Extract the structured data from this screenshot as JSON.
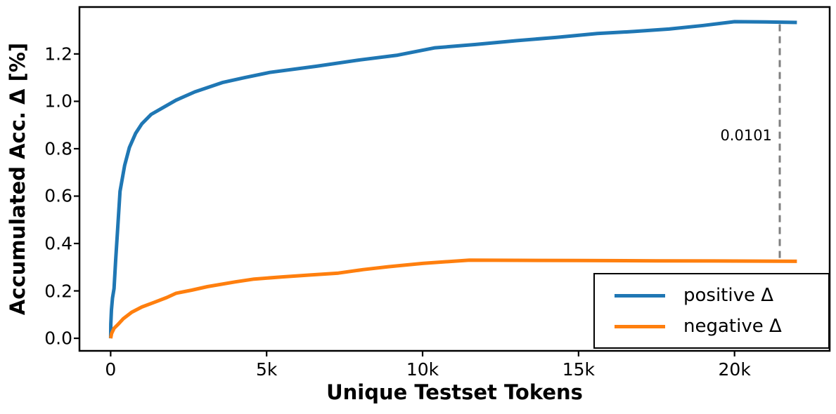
{
  "chart_data": {
    "type": "line",
    "title": "",
    "xlabel": "Unique Testset Tokens",
    "ylabel": "Accumulated Acc. Δ [%]",
    "grid": false,
    "legend_position": "lower right",
    "xlim": [
      -1000,
      23050
    ],
    "ylim": [
      -0.053,
      1.398
    ],
    "x_ticks": [
      {
        "value": 0,
        "label": "0"
      },
      {
        "value": 5000,
        "label": "5k"
      },
      {
        "value": 10000,
        "label": "10k"
      },
      {
        "value": 15000,
        "label": "15k"
      },
      {
        "value": 20000,
        "label": "20k"
      }
    ],
    "y_ticks": [
      {
        "value": 0.0,
        "label": "0.0"
      },
      {
        "value": 0.2,
        "label": "0.2"
      },
      {
        "value": 0.4,
        "label": "0.4"
      },
      {
        "value": 0.6,
        "label": "0.6"
      },
      {
        "value": 0.8,
        "label": "0.8"
      },
      {
        "value": 1.0,
        "label": "1.0"
      },
      {
        "value": 1.2,
        "label": "1.2"
      }
    ],
    "series": [
      {
        "name": "positive Δ",
        "color": "#1f77b4",
        "points": [
          [
            0,
            0.0
          ],
          [
            5,
            0.06
          ],
          [
            25,
            0.12
          ],
          [
            60,
            0.17
          ],
          [
            110,
            0.21
          ],
          [
            160,
            0.33
          ],
          [
            225,
            0.46
          ],
          [
            300,
            0.62
          ],
          [
            450,
            0.73
          ],
          [
            600,
            0.805
          ],
          [
            800,
            0.865
          ],
          [
            1000,
            0.905
          ],
          [
            1300,
            0.945
          ],
          [
            1700,
            0.975
          ],
          [
            2100,
            1.005
          ],
          [
            2700,
            1.04
          ],
          [
            3600,
            1.08
          ],
          [
            4300,
            1.1
          ],
          [
            5100,
            1.122
          ],
          [
            6600,
            1.148
          ],
          [
            8000,
            1.175
          ],
          [
            9200,
            1.195
          ],
          [
            10400,
            1.226
          ],
          [
            11700,
            1.24
          ],
          [
            13000,
            1.256
          ],
          [
            14300,
            1.27
          ],
          [
            15600,
            1.286
          ],
          [
            16800,
            1.295
          ],
          [
            17900,
            1.305
          ],
          [
            19000,
            1.32
          ],
          [
            20000,
            1.336
          ],
          [
            21000,
            1.335
          ],
          [
            22000,
            1.333
          ]
        ]
      },
      {
        "name": "negative Δ",
        "color": "#ff7f0e",
        "points": [
          [
            0,
            0.0
          ],
          [
            30,
            0.02
          ],
          [
            110,
            0.042
          ],
          [
            225,
            0.057
          ],
          [
            400,
            0.082
          ],
          [
            675,
            0.11
          ],
          [
            1000,
            0.132
          ],
          [
            1400,
            0.152
          ],
          [
            1800,
            0.172
          ],
          [
            2100,
            0.19
          ],
          [
            2600,
            0.203
          ],
          [
            3100,
            0.218
          ],
          [
            4000,
            0.238
          ],
          [
            4600,
            0.25
          ],
          [
            5500,
            0.259
          ],
          [
            6400,
            0.267
          ],
          [
            7300,
            0.275
          ],
          [
            8100,
            0.29
          ],
          [
            8900,
            0.302
          ],
          [
            10000,
            0.316
          ],
          [
            11500,
            0.33
          ],
          [
            13000,
            0.329
          ],
          [
            15000,
            0.328
          ],
          [
            17500,
            0.327
          ],
          [
            20000,
            0.326
          ],
          [
            22000,
            0.325
          ]
        ]
      }
    ],
    "dashed_line": {
      "x": 21450,
      "y_from": 0.328,
      "y_to": 1.325,
      "color": "#7f7f7f"
    },
    "annotation": {
      "text": "0.0101",
      "x": 21200,
      "y": 0.857,
      "align": "right"
    }
  },
  "colors": {
    "positive": "#1f77b4",
    "negative": "#ff7f0e",
    "axis": "#000000",
    "dashed": "#7f7f7f",
    "background": "#ffffff"
  }
}
